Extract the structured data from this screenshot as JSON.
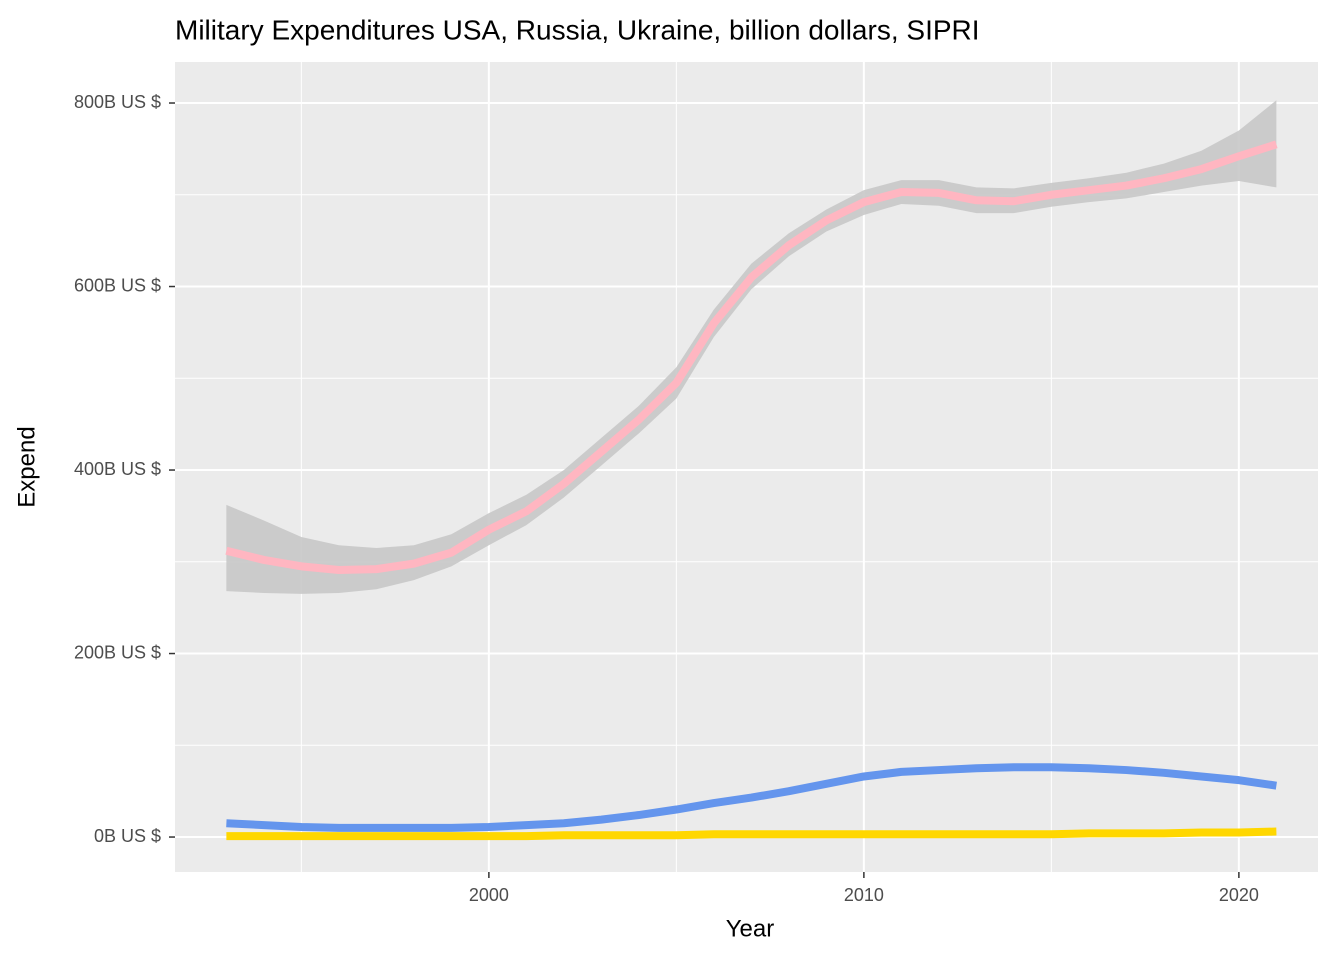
{
  "chart_data": {
    "type": "line",
    "title": "Military Expenditures USA, Russia, Ukraine, billion dollars, SIPRI",
    "x_label": "Year",
    "y_label": "Expend",
    "x": [
      1993,
      1994,
      1995,
      1996,
      1997,
      1998,
      1999,
      2000,
      2001,
      2002,
      2003,
      2004,
      2005,
      2006,
      2007,
      2008,
      2009,
      2010,
      2011,
      2012,
      2013,
      2014,
      2015,
      2016,
      2017,
      2018,
      2019,
      2020,
      2021
    ],
    "series": [
      {
        "color": "#FFB6C1",
        "band_color": "#C8C8C8",
        "values": [
          312,
          302,
          295,
          291,
          292,
          298,
          310,
          335,
          355,
          385,
          420,
          455,
          495,
          560,
          610,
          645,
          672,
          692,
          703,
          702,
          694,
          693,
          700,
          705,
          710,
          718,
          728,
          742,
          755
        ],
        "lower": [
          268,
          266,
          265,
          266,
          270,
          280,
          295,
          318,
          340,
          370,
          405,
          440,
          478,
          545,
          597,
          633,
          660,
          678,
          690,
          688,
          680,
          680,
          687,
          692,
          696,
          703,
          710,
          715,
          708
        ],
        "upper": [
          362,
          345,
          327,
          318,
          315,
          318,
          330,
          353,
          373,
          400,
          435,
          470,
          512,
          575,
          625,
          658,
          684,
          705,
          716,
          716,
          708,
          707,
          713,
          718,
          724,
          734,
          748,
          770,
          803
        ]
      },
      {
        "color": "#6495ED",
        "values": [
          15,
          13,
          11,
          10,
          10,
          10,
          10,
          11,
          13,
          15,
          19,
          24,
          30,
          37,
          43,
          50,
          58,
          66,
          71,
          73,
          75,
          76,
          76,
          75,
          73,
          70,
          66,
          62,
          56
        ]
      },
      {
        "color": "#FFD700",
        "values": [
          1,
          1,
          1,
          1,
          1,
          1,
          1,
          1,
          1,
          2,
          2,
          2,
          2,
          3,
          3,
          3,
          3,
          3,
          3,
          3,
          3,
          3,
          3,
          4,
          4,
          4,
          5,
          5,
          6
        ]
      }
    ],
    "xlim": [
      1991.63,
      2022.11
    ],
    "xticks": [
      2000,
      2010,
      2020
    ],
    "minor_xticks": [
      1995,
      2005,
      2015
    ],
    "ylim": [
      -38.1,
      844.7
    ],
    "yticks": [
      {
        "value": 0,
        "label": "0B US $"
      },
      {
        "value": 200,
        "label": "200B US $"
      },
      {
        "value": 400,
        "label": "400B US $"
      },
      {
        "value": 600,
        "label": "600B US $"
      },
      {
        "value": 800,
        "label": "800B US $"
      }
    ],
    "minor_yticks": [
      100,
      300,
      500,
      700
    ],
    "grid": true
  }
}
